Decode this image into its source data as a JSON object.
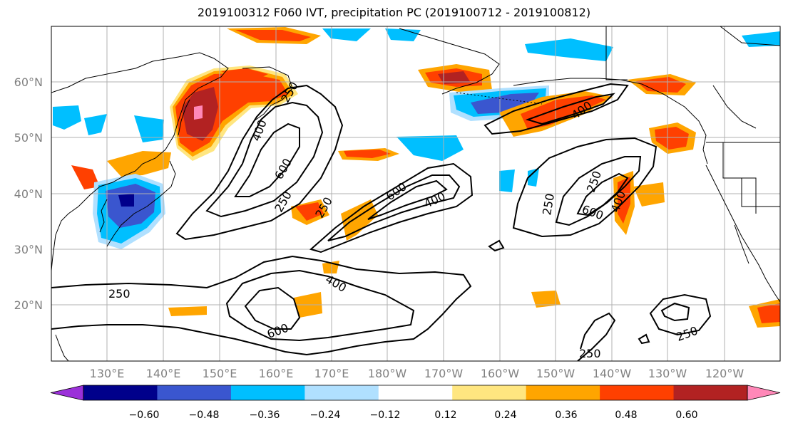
{
  "title": "2019100312 F060 IVT, precipitation PC (2019100712 - 2019100812)",
  "map": {
    "lon_labels": [
      "130°E",
      "140°E",
      "150°E",
      "160°E",
      "170°E",
      "180°W",
      "170°W",
      "160°W",
      "150°W",
      "140°W",
      "130°W",
      "120°W"
    ],
    "lat_labels": [
      "60°N",
      "50°N",
      "40°N",
      "30°N",
      "20°N"
    ],
    "contour_labels": [
      {
        "text": "400"
      },
      {
        "text": "600"
      },
      {
        "text": "250"
      },
      {
        "text": "250"
      },
      {
        "text": "600"
      },
      {
        "text": "400"
      },
      {
        "text": "250"
      },
      {
        "text": "400"
      },
      {
        "text": "600"
      },
      {
        "text": "250"
      },
      {
        "text": "250"
      },
      {
        "text": "600"
      },
      {
        "text": "400"
      },
      {
        "text": "250"
      },
      {
        "text": "400"
      },
      {
        "text": "250"
      },
      {
        "text": "250"
      }
    ],
    "colors": {
      "grid": "#b0b0b0",
      "coast": "#000000",
      "contour": "#000000"
    }
  },
  "colorbar": {
    "tick_labels": [
      "−0.60",
      "−0.48",
      "−0.36",
      "−0.24",
      "−0.12",
      "0.12",
      "0.24",
      "0.36",
      "0.48",
      "0.60"
    ],
    "colors": [
      "#9b30d9",
      "#00008b",
      "#3a56cf",
      "#00bfff",
      "#b0e0ff",
      "#ffffff",
      "#ffe680",
      "#ffa500",
      "#ff4000",
      "#b22222",
      "#ff88b8"
    ]
  }
}
